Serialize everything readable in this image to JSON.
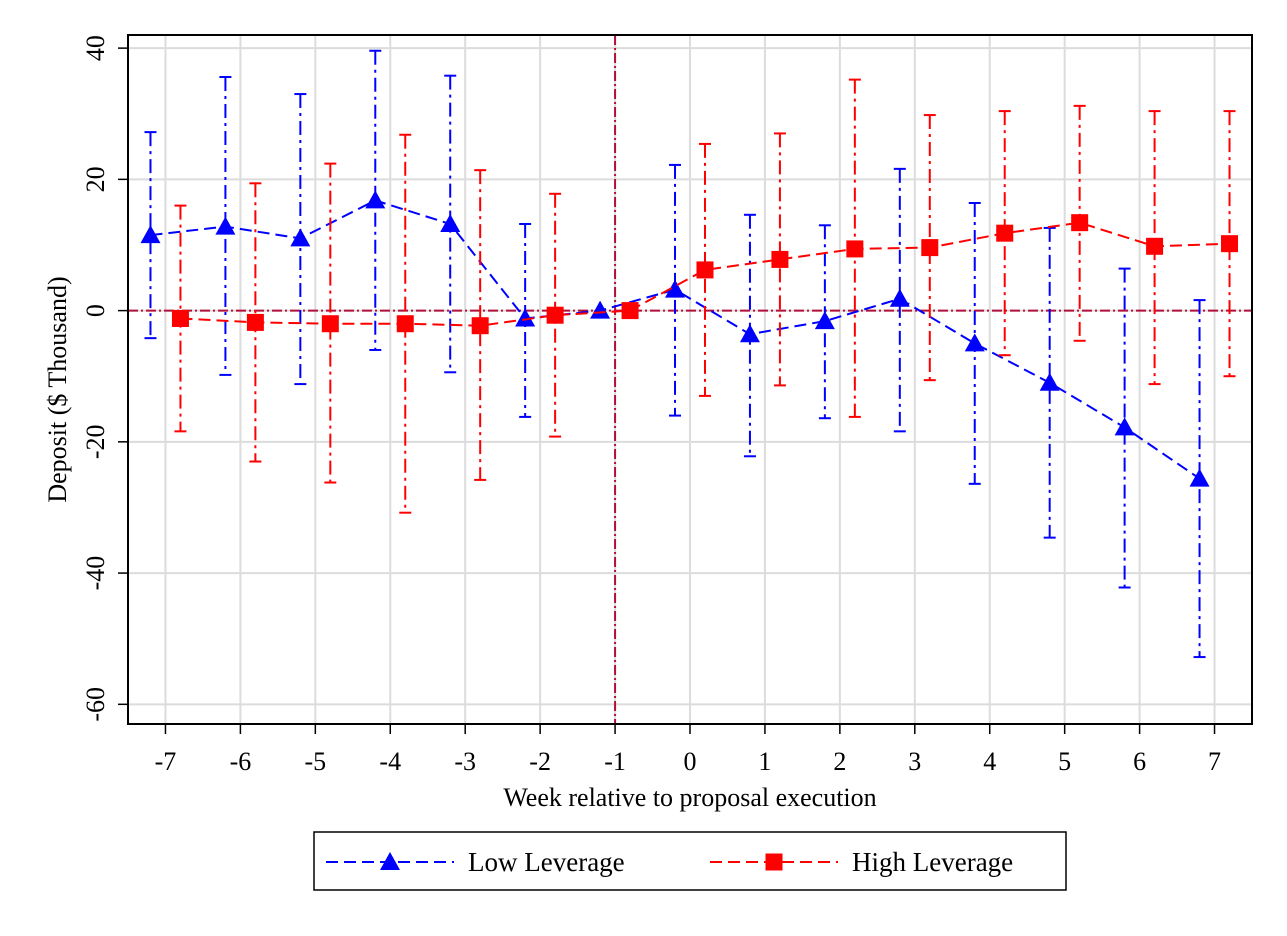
{
  "chart_data": {
    "type": "line",
    "xlabel": "Week relative to proposal execution",
    "ylabel": "Deposit ($ Thousand)",
    "x_ticks": [
      "-7",
      "-6",
      "-5",
      "-4",
      "-3",
      "-2",
      "-1",
      "0",
      "1",
      "2",
      "3",
      "4",
      "5",
      "6",
      "7"
    ],
    "y_ticks": [
      "40",
      "20",
      "0",
      "-20",
      "-40",
      "-60"
    ],
    "xlim": [
      -7.5,
      7.5
    ],
    "ylim": [
      -63,
      42
    ],
    "grid": true,
    "reference_lines": {
      "x": -1,
      "y": 0
    },
    "legend_position": "bottom",
    "series": [
      {
        "name": "Low Leverage",
        "color": "#0000ff",
        "marker": "triangle",
        "x": [
          -7.2,
          -6.2,
          -5.2,
          -4.2,
          -3.2,
          -2.2,
          -1.2,
          -0.2,
          0.8,
          1.8,
          2.8,
          3.8,
          4.8,
          5.8,
          6.8
        ],
        "y": [
          11.5,
          12.8,
          11.0,
          16.8,
          13.2,
          -1.2,
          0,
          3.2,
          -3.6,
          -1.6,
          1.8,
          -5.0,
          -11.0,
          -17.8,
          -25.6
        ],
        "ci_low": [
          -4.2,
          -9.8,
          -11.2,
          -6.0,
          -9.4,
          -16.2,
          0,
          -16.0,
          -22.2,
          -16.4,
          -18.4,
          -26.4,
          -34.6,
          -42.2,
          -52.8
        ],
        "ci_high": [
          27.2,
          35.6,
          33.0,
          39.6,
          35.8,
          13.2,
          0,
          22.2,
          14.6,
          13.0,
          21.6,
          16.4,
          12.6,
          6.4,
          1.6
        ]
      },
      {
        "name": "High Leverage",
        "color": "#ff0000",
        "marker": "square",
        "x": [
          -6.8,
          -5.8,
          -4.8,
          -3.8,
          -2.8,
          -1.8,
          -0.8,
          0.2,
          1.2,
          2.2,
          3.2,
          4.2,
          5.2,
          6.2,
          7.2
        ],
        "y": [
          -1.2,
          -1.8,
          -2.0,
          -2.0,
          -2.3,
          -0.7,
          0,
          6.2,
          7.8,
          9.4,
          9.6,
          11.8,
          13.4,
          9.8,
          10.2
        ],
        "ci_low": [
          -18.4,
          -23.0,
          -26.2,
          -30.8,
          -25.8,
          -19.2,
          0,
          -13.0,
          -11.4,
          -16.2,
          -10.6,
          -6.8,
          -4.6,
          -11.2,
          -10.0
        ],
        "ci_high": [
          16.0,
          19.4,
          22.4,
          26.8,
          21.4,
          17.8,
          0,
          25.4,
          27.0,
          35.2,
          29.8,
          30.4,
          31.2,
          30.4,
          30.4
        ]
      }
    ]
  }
}
